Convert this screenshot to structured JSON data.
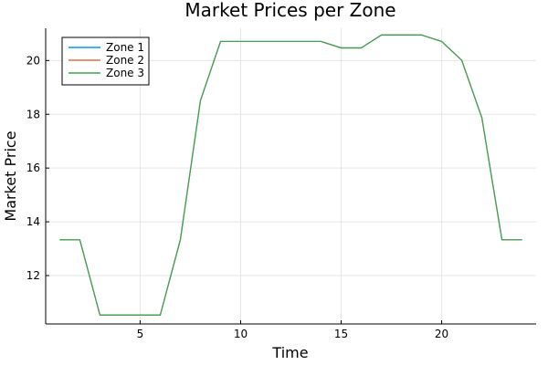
{
  "chart_data": {
    "type": "line",
    "title": "Market Prices per Zone",
    "xlabel": "Time",
    "ylabel": "Market Price",
    "xlim": [
      0.3,
      24.7
    ],
    "ylim": [
      10.2,
      21.2
    ],
    "xticks": [
      5,
      10,
      15,
      20
    ],
    "yticks": [
      12,
      14,
      16,
      18,
      20
    ],
    "grid": true,
    "legend_position": "top-left",
    "x": [
      1,
      2,
      3,
      4,
      5,
      6,
      7,
      8,
      9,
      10,
      11,
      12,
      13,
      14,
      15,
      16,
      17,
      18,
      19,
      20,
      21,
      22,
      23,
      24
    ],
    "series": [
      {
        "name": "Zone 1",
        "color": "#009af9",
        "values": [
          13.33,
          13.33,
          10.53,
          10.53,
          10.53,
          10.53,
          13.33,
          18.51,
          20.71,
          20.71,
          20.71,
          20.71,
          20.71,
          20.71,
          20.47,
          20.47,
          20.95,
          20.95,
          20.95,
          20.71,
          20.01,
          17.87,
          13.33,
          13.33
        ]
      },
      {
        "name": "Zone 2",
        "color": "#e26f46",
        "values": [
          13.33,
          13.33,
          10.53,
          10.53,
          10.53,
          10.53,
          13.33,
          18.51,
          20.71,
          20.71,
          20.71,
          20.71,
          20.71,
          20.71,
          20.47,
          20.47,
          20.95,
          20.95,
          20.95,
          20.71,
          20.01,
          17.87,
          13.33,
          13.33
        ]
      },
      {
        "name": "Zone 3",
        "color": "#3da44d",
        "values": [
          13.33,
          13.33,
          10.53,
          10.53,
          10.53,
          10.53,
          13.33,
          18.51,
          20.71,
          20.71,
          20.71,
          20.71,
          20.71,
          20.71,
          20.47,
          20.47,
          20.95,
          20.95,
          20.95,
          20.71,
          20.01,
          17.87,
          13.33,
          13.33
        ]
      }
    ]
  }
}
